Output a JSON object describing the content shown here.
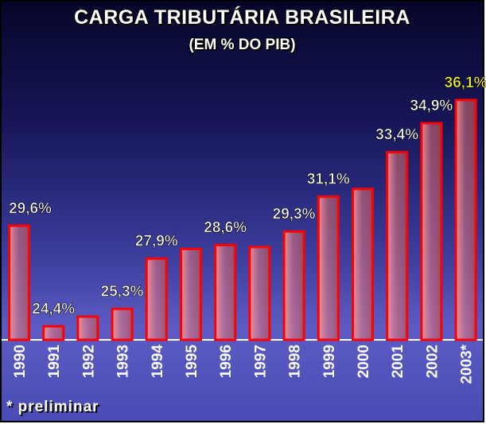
{
  "chart_data": {
    "type": "bar",
    "title": "CARGA TRIBUTÁRIA BRASILEIRA",
    "subtitle": "(EM % DO PIB)",
    "categories": [
      "1990",
      "1991",
      "1992",
      "1993",
      "1994",
      "1995",
      "1996",
      "1997",
      "1998",
      "1999",
      "2000",
      "2001",
      "2002",
      "2003*"
    ],
    "values": [
      29.6,
      24.4,
      24.9,
      25.3,
      27.9,
      28.4,
      28.6,
      28.5,
      29.3,
      31.1,
      31.5,
      33.4,
      34.9,
      36.1
    ],
    "data_labels": [
      "29,6%",
      "24,4%",
      "",
      "25,3%",
      "27,9%",
      "",
      "28,6%",
      "",
      "29,3%",
      "31,1%",
      "",
      "33,4%",
      "34,9%",
      "36,1%"
    ],
    "highlight_index": 13,
    "ylim": [
      23.7,
      37
    ],
    "grid": false,
    "footnote": "* preliminar",
    "colors": {
      "bar_fill": "#f08080",
      "bar_border": "#ff0000",
      "label": "#ffffff",
      "highlight_label": "#ffff33"
    }
  }
}
